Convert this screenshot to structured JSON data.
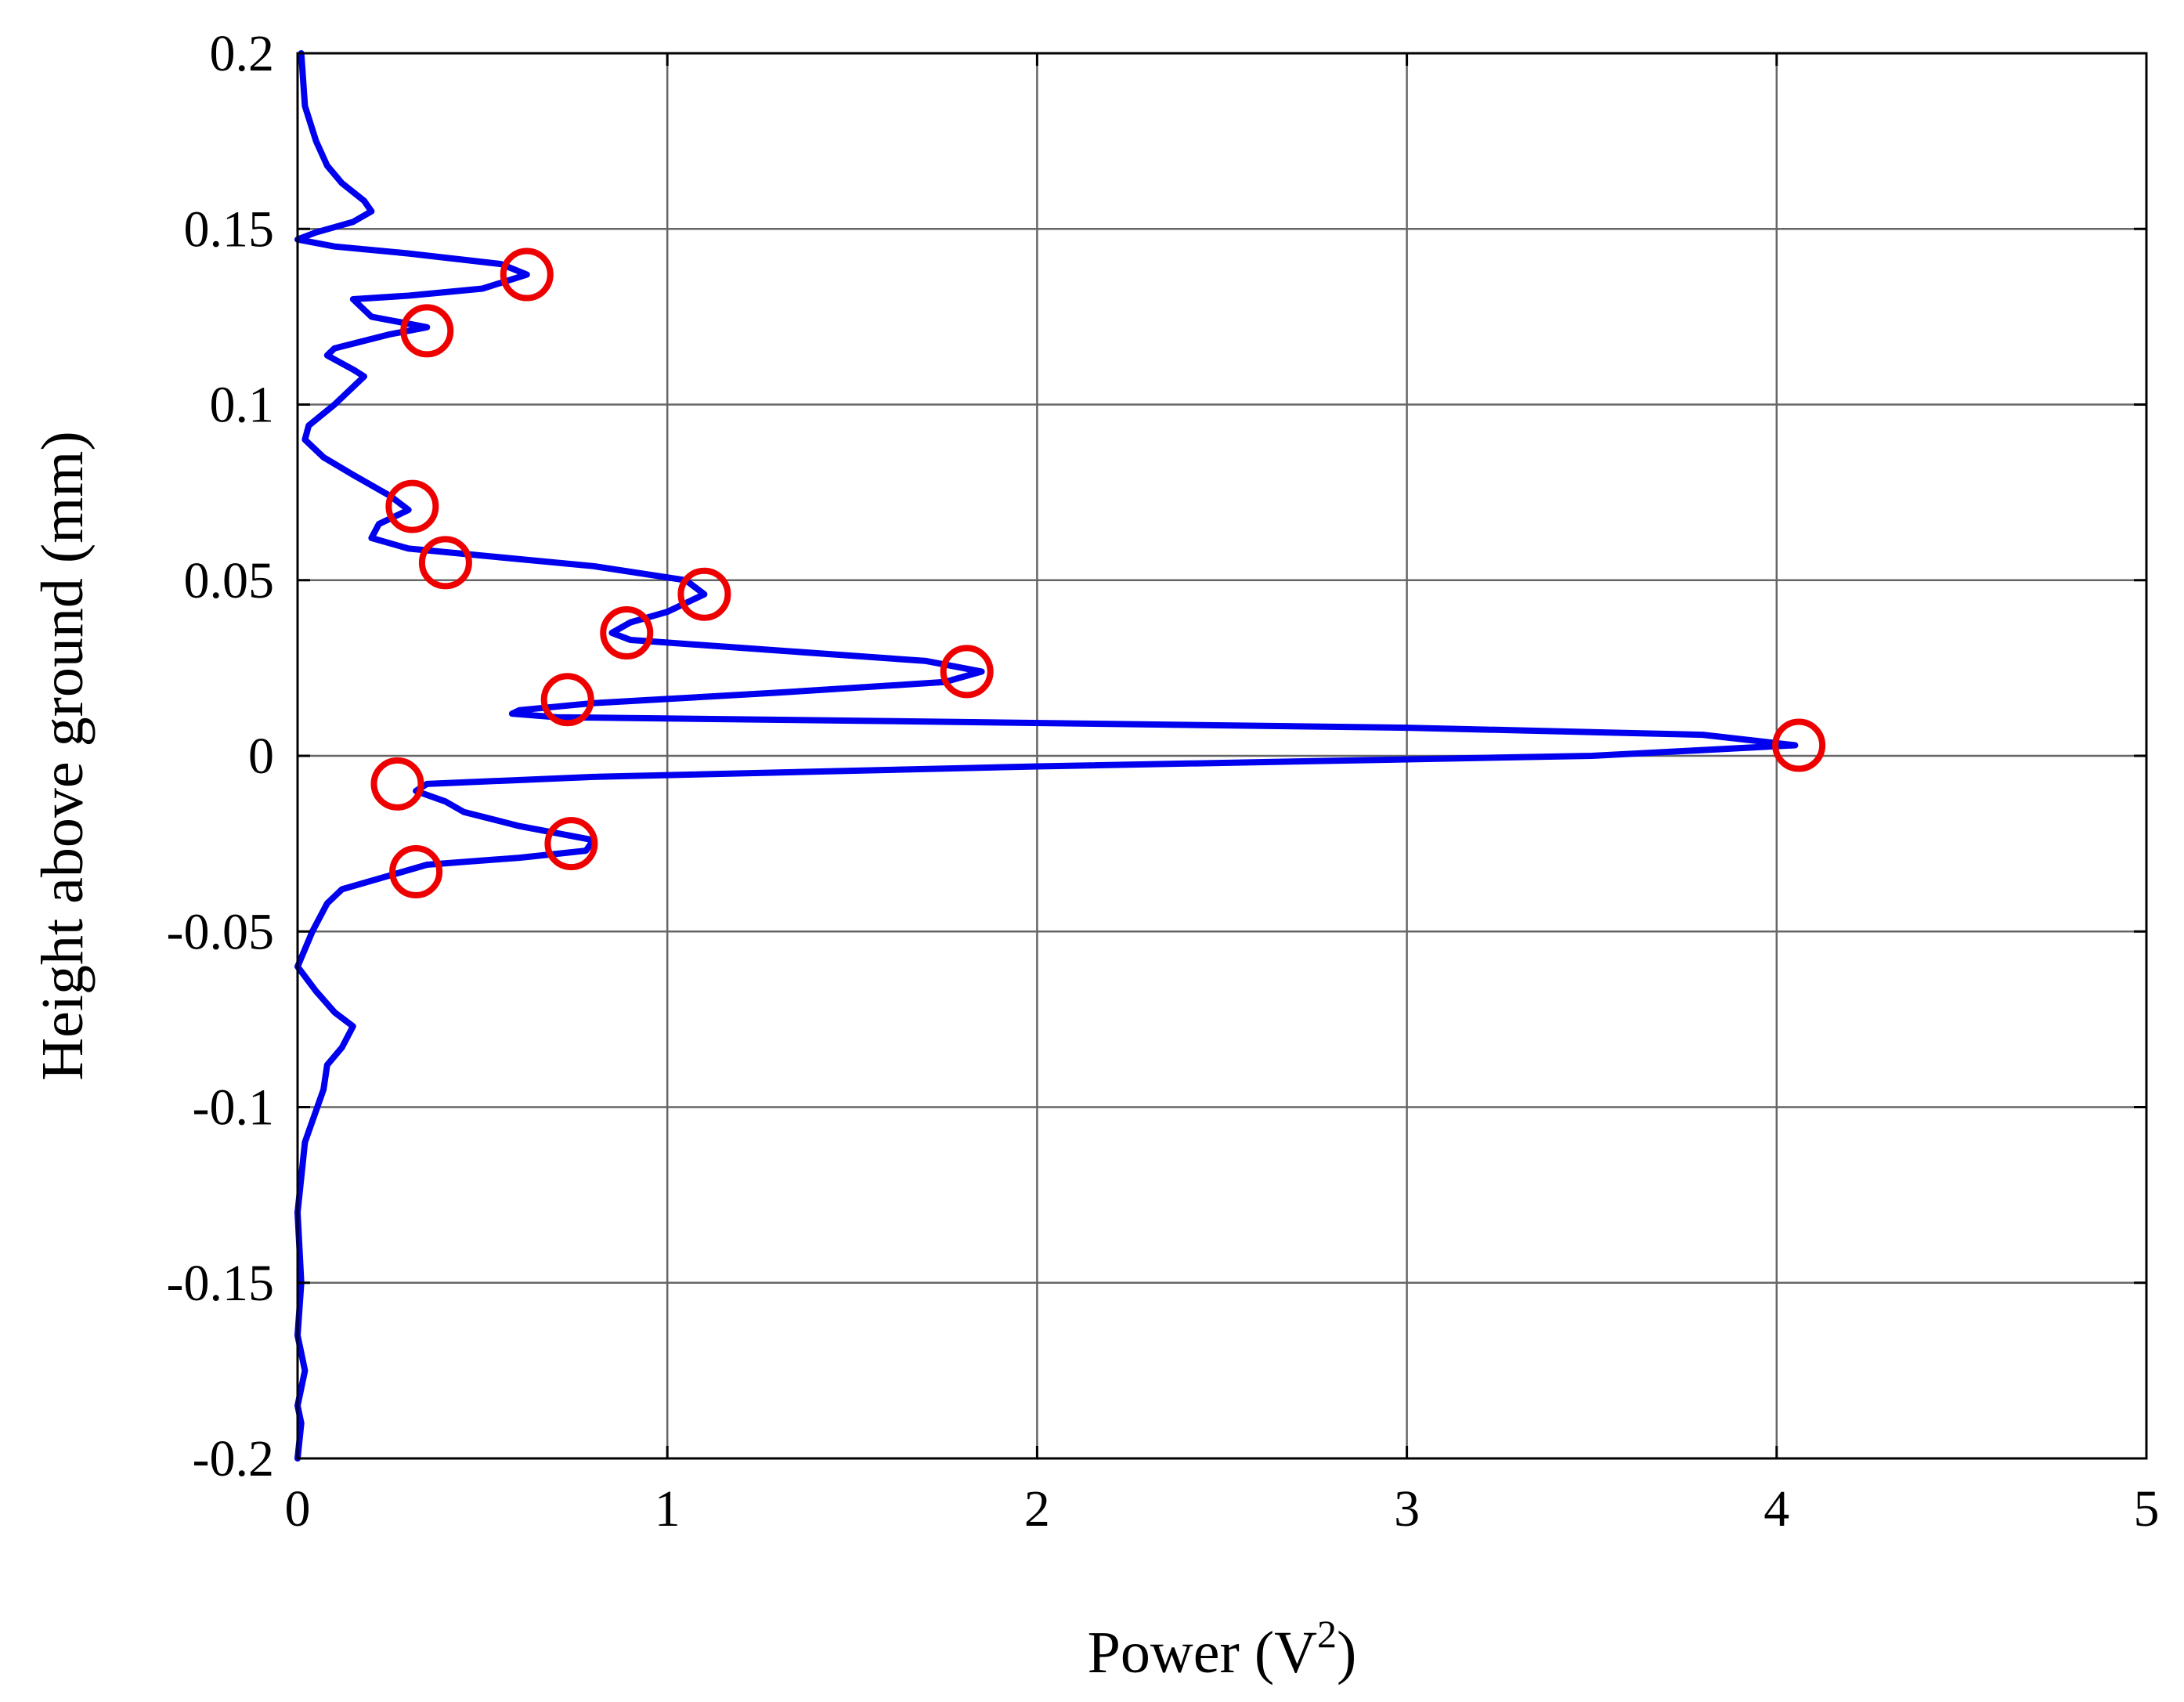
{
  "chart_data": {
    "type": "line",
    "xlabel_base": "Power (V",
    "xlabel_sup": "2",
    "xlabel_end": ")",
    "ylabel": "Height above ground (mm)",
    "xlim": [
      0,
      5
    ],
    "ylim": [
      -0.2,
      0.2
    ],
    "xticks": [
      0,
      1,
      2,
      3,
      4,
      5
    ],
    "xtick_labels": [
      "0",
      "1",
      "2",
      "3",
      "4",
      "5"
    ],
    "yticks": [
      0.2,
      0.15,
      0.1,
      0.05,
      0,
      -0.05,
      -0.1,
      -0.15,
      -0.2
    ],
    "ytick_labels": [
      "0.2",
      "0.15",
      "0.1",
      "0.05",
      "0",
      "-0.05",
      "-0.1",
      "-0.15",
      "-0.2"
    ],
    "grid": true,
    "line_color": "#0000ee",
    "marker_color": "#ee0000",
    "series": [
      {
        "x": [
          0.01,
          0.02,
          0.05,
          0.08,
          0.12,
          0.18,
          0.2,
          0.15,
          0.05,
          0.0,
          0.1,
          0.3,
          0.55,
          0.62,
          0.5,
          0.3,
          0.15,
          0.2,
          0.35,
          0.25,
          0.1,
          0.08,
          0.15,
          0.18,
          0.1,
          0.03,
          0.02,
          0.07,
          0.15,
          0.25,
          0.3,
          0.22,
          0.2,
          0.3,
          0.5,
          0.8,
          1.05,
          1.1,
          1.0,
          0.9,
          0.85,
          0.9,
          1.3,
          1.7,
          1.85,
          1.75,
          1.3,
          0.8,
          0.6,
          0.58,
          0.7,
          1.5,
          3.0,
          3.8,
          4.05,
          3.5,
          2.0,
          0.8,
          0.35,
          0.32,
          0.4,
          0.45,
          0.6,
          0.8,
          0.78,
          0.6,
          0.35,
          0.12,
          0.08,
          0.04,
          0.0,
          0.05,
          0.1,
          0.15,
          0.12,
          0.08,
          0.07,
          0.02,
          0.0,
          0.01,
          0.0,
          0.02,
          0.0,
          0.01,
          0.0
        ],
        "y": [
          0.2,
          0.185,
          0.175,
          0.168,
          0.163,
          0.158,
          0.155,
          0.152,
          0.149,
          0.147,
          0.145,
          0.143,
          0.14,
          0.137,
          0.133,
          0.131,
          0.13,
          0.125,
          0.122,
          0.12,
          0.116,
          0.114,
          0.11,
          0.108,
          0.1,
          0.094,
          0.09,
          0.085,
          0.08,
          0.074,
          0.07,
          0.066,
          0.062,
          0.059,
          0.057,
          0.054,
          0.05,
          0.046,
          0.041,
          0.038,
          0.035,
          0.033,
          0.03,
          0.027,
          0.024,
          0.021,
          0.018,
          0.015,
          0.013,
          0.012,
          0.011,
          0.01,
          0.008,
          0.006,
          0.003,
          0.0,
          -0.003,
          -0.006,
          -0.008,
          -0.01,
          -0.013,
          -0.016,
          -0.02,
          -0.024,
          -0.027,
          -0.029,
          -0.031,
          -0.038,
          -0.042,
          -0.05,
          -0.06,
          -0.067,
          -0.073,
          -0.077,
          -0.083,
          -0.088,
          -0.095,
          -0.11,
          -0.13,
          -0.15,
          -0.165,
          -0.175,
          -0.185,
          -0.19,
          -0.2
        ]
      }
    ],
    "highlighted_points": [
      {
        "x": 0.62,
        "y": 0.137
      },
      {
        "x": 0.35,
        "y": 0.121
      },
      {
        "x": 0.31,
        "y": 0.071
      },
      {
        "x": 0.4,
        "y": 0.055
      },
      {
        "x": 1.1,
        "y": 0.046
      },
      {
        "x": 0.89,
        "y": 0.035
      },
      {
        "x": 1.81,
        "y": 0.024
      },
      {
        "x": 0.73,
        "y": 0.016
      },
      {
        "x": 4.06,
        "y": 0.003
      },
      {
        "x": 0.27,
        "y": -0.008
      },
      {
        "x": 0.74,
        "y": -0.025
      },
      {
        "x": 0.32,
        "y": -0.033
      }
    ]
  }
}
